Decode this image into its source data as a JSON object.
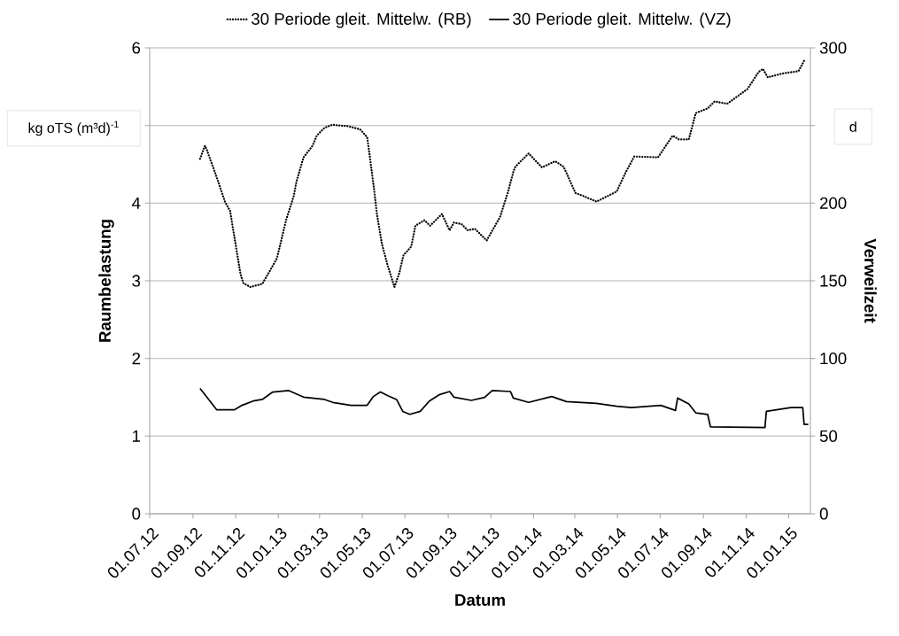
{
  "chart_data": {
    "type": "line",
    "xlabel": "Datum",
    "ylabel": "Raumbelastung",
    "y2label": "Verweilzeit",
    "annotations": [
      "kg oTS (m³d)$^{-1}$",
      "d"
    ],
    "xlim": [
      "2012-07-01",
      "2015-02-01"
    ],
    "xticks": [
      {
        "value": "2012-07-01",
        "label": "01.07.12"
      },
      {
        "value": "2012-09-01",
        "label": "01.09.12"
      },
      {
        "value": "2012-11-01",
        "label": "01.11.12"
      },
      {
        "value": "2013-01-01",
        "label": "01.01.13"
      },
      {
        "value": "2013-03-01",
        "label": "01.03.13"
      },
      {
        "value": "2013-05-01",
        "label": "01.05.13"
      },
      {
        "value": "2013-07-01",
        "label": "01.07.13"
      },
      {
        "value": "2013-09-01",
        "label": "01.09.13"
      },
      {
        "value": "2013-11-01",
        "label": "01.11.13"
      },
      {
        "value": "2014-01-01",
        "label": "01.01.14"
      },
      {
        "value": "2014-03-01",
        "label": "01.03.14"
      },
      {
        "value": "2014-05-01",
        "label": "01.05.14"
      },
      {
        "value": "2014-07-01",
        "label": "01.07.14"
      },
      {
        "value": "2014-09-01",
        "label": "01.09.14"
      },
      {
        "value": "2014-11-01",
        "label": "01.11.14"
      },
      {
        "value": "2015-01-01",
        "label": "01.01.15"
      }
    ],
    "ylim": [
      0,
      6
    ],
    "yticks": [
      0,
      1,
      2,
      3,
      4,
      {
        "value": 5,
        "label": null
      },
      6
    ],
    "y2lim": [
      0,
      300
    ],
    "y2ticks": [
      0,
      50,
      100,
      150,
      200,
      {
        "value": 250,
        "label": null
      },
      300
    ],
    "grid": "y",
    "legend": "top",
    "marker": "none",
    "series": [
      {
        "name": "30 Periode gleit. Mittelw. (RB)",
        "color": "#000000",
        "line_style": "dotted",
        "axis": "y",
        "x": [
          "2012-09-11",
          "2012-09-18",
          "2012-09-21",
          "2012-10-03",
          "2012-10-17",
          "2012-10-24",
          "2012-11-08",
          "2012-11-12",
          "2012-11-22",
          "2012-12-09",
          "2012-12-20",
          "2012-12-30",
          "2013-01-12",
          "2013-01-23",
          "2013-01-27",
          "2013-02-06",
          "2013-02-19",
          "2013-02-25",
          "2013-03-08",
          "2013-03-19",
          "2013-04-11",
          "2013-04-28",
          "2013-05-08",
          "2013-05-12",
          "2013-05-18",
          "2013-05-22",
          "2013-05-29",
          "2013-06-06",
          "2013-06-16",
          "2013-06-23",
          "2013-06-29",
          "2013-07-10",
          "2013-07-16",
          "2013-07-29",
          "2013-08-06",
          "2013-08-23",
          "2013-09-03",
          "2013-09-09",
          "2013-09-20",
          "2013-09-29",
          "2013-10-09",
          "2013-10-26",
          "2013-11-14",
          "2013-11-25",
          "2013-12-03",
          "2013-12-06",
          "2013-12-25",
          "2014-01-13",
          "2014-02-01",
          "2014-02-13",
          "2014-03-02",
          "2014-03-11",
          "2014-04-01",
          "2014-04-30",
          "2014-05-13",
          "2014-05-25",
          "2014-06-28",
          "2014-07-19",
          "2014-07-28",
          "2014-08-11",
          "2014-08-21",
          "2014-09-07",
          "2014-09-17",
          "2014-10-05",
          "2014-11-03",
          "2014-11-19",
          "2014-11-25",
          "2014-12-02",
          "2014-12-23",
          "2015-01-15",
          "2015-01-24"
        ],
        "values": [
          4.57,
          4.74,
          4.68,
          4.38,
          4.01,
          3.9,
          3.08,
          2.97,
          2.92,
          2.96,
          3.13,
          3.29,
          3.78,
          4.09,
          4.28,
          4.59,
          4.74,
          4.87,
          4.97,
          5.01,
          4.99,
          4.95,
          4.85,
          4.59,
          4.17,
          3.86,
          3.48,
          3.21,
          2.92,
          3.1,
          3.33,
          3.44,
          3.71,
          3.78,
          3.71,
          3.86,
          3.65,
          3.75,
          3.73,
          3.65,
          3.67,
          3.52,
          3.82,
          4.13,
          4.4,
          4.47,
          4.64,
          4.46,
          4.54,
          4.47,
          4.13,
          4.1,
          4.02,
          4.15,
          4.4,
          4.6,
          4.59,
          4.87,
          4.82,
          4.82,
          5.16,
          5.22,
          5.31,
          5.28,
          5.47,
          5.69,
          5.73,
          5.62,
          5.67,
          5.7,
          5.85
        ]
      },
      {
        "name": "30 Periode gleit. Mittelw. (VZ)",
        "color": "#000000",
        "line_style": "solid",
        "axis": "y2",
        "x": [
          "2012-09-11",
          "2012-10-05",
          "2012-10-30",
          "2012-11-10",
          "2012-11-26",
          "2012-12-09",
          "2012-12-24",
          "2013-01-16",
          "2013-02-06",
          "2013-03-08",
          "2013-03-20",
          "2013-04-15",
          "2013-05-08",
          "2013-05-17",
          "2013-05-27",
          "2013-06-06",
          "2013-06-19",
          "2013-06-28",
          "2013-07-08",
          "2013-07-23",
          "2013-08-05",
          "2013-08-20",
          "2013-09-03",
          "2013-09-09",
          "2013-10-04",
          "2013-10-23",
          "2013-11-03",
          "2013-11-29",
          "2013-12-03",
          "2013-12-25",
          "2014-01-27",
          "2014-02-17",
          "2014-04-01",
          "2014-04-30",
          "2014-05-21",
          "2014-07-02",
          "2014-07-23",
          "2014-07-26",
          "2014-08-11",
          "2014-08-21",
          "2014-09-07",
          "2014-09-11",
          "2014-11-28",
          "2014-11-30",
          "2015-01-04",
          "2015-01-21",
          "2015-01-23",
          "2015-01-29"
        ],
        "values": [
          80.7,
          66.9,
          66.9,
          69.8,
          72.6,
          73.6,
          78.4,
          79.3,
          75.1,
          73.6,
          71.7,
          69.8,
          69.8,
          75.5,
          78.4,
          76.1,
          73.6,
          65.9,
          64.0,
          65.9,
          72.6,
          76.8,
          78.7,
          75.1,
          73.0,
          74.9,
          79.3,
          78.7,
          74.5,
          71.7,
          75.5,
          72.2,
          71.1,
          69.2,
          68.4,
          69.8,
          66.5,
          74.5,
          70.7,
          65.0,
          64.0,
          56.0,
          55.5,
          65.9,
          68.4,
          68.4,
          57.5,
          57.5
        ]
      }
    ]
  }
}
